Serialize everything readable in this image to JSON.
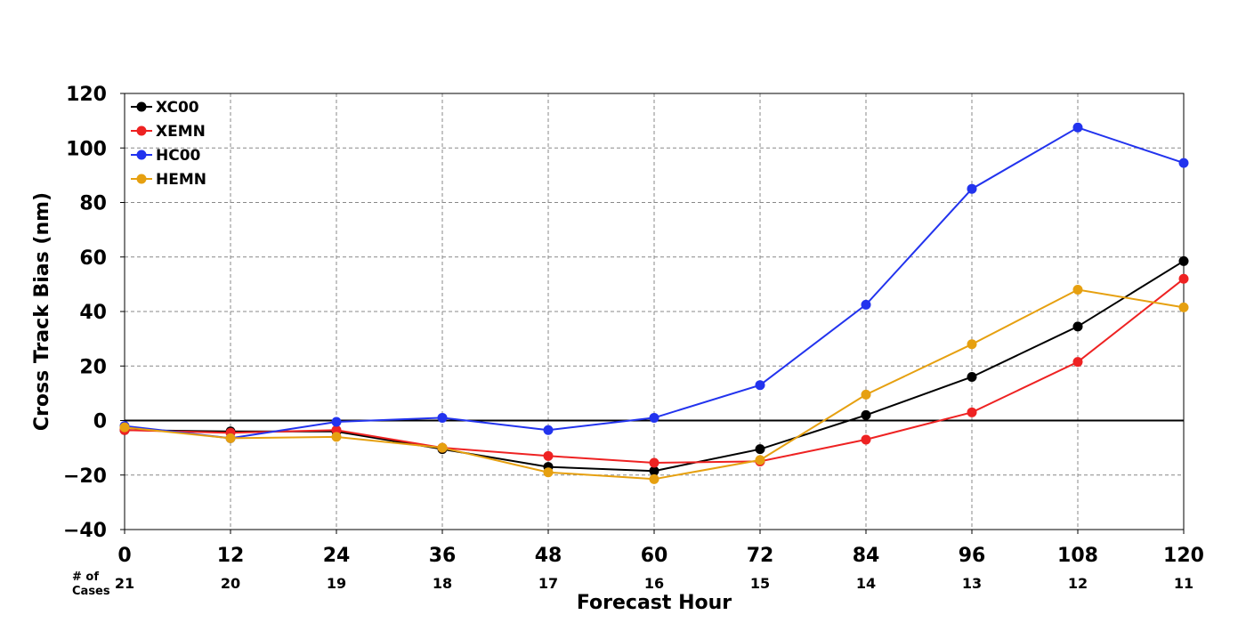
{
  "chart_data": {
    "type": "line",
    "xlabel": "Forecast Hour",
    "ylabel": "Cross Track Bias (nm)",
    "x": [
      0,
      12,
      24,
      36,
      48,
      60,
      72,
      84,
      96,
      108,
      120
    ],
    "xlim": [
      0,
      120
    ],
    "ylim": [
      -40,
      120
    ],
    "xticks": [
      0,
      12,
      24,
      36,
      48,
      60,
      72,
      84,
      96,
      108,
      120
    ],
    "yticks": [
      -40,
      -20,
      0,
      20,
      40,
      60,
      80,
      100,
      120
    ],
    "grid": true,
    "zero_line": true,
    "legend_position": "top-left",
    "cases_caption_line1": "# of",
    "cases_caption_line2": "Cases",
    "cases": [
      21,
      20,
      19,
      18,
      17,
      16,
      15,
      14,
      13,
      12,
      11
    ],
    "series": [
      {
        "name": "XC00",
        "color": "#000000",
        "values": [
          -3.5,
          -4,
          -4,
          -10.5,
          -17,
          -18.5,
          -10.5,
          2,
          16,
          34.5,
          58.5
        ]
      },
      {
        "name": "XEMN",
        "color": "#ee2222",
        "values": [
          -3.5,
          -4.5,
          -3.5,
          -10,
          -13,
          -15.5,
          -15,
          -7,
          3,
          21.5,
          52
        ]
      },
      {
        "name": "HC00",
        "color": "#2233ee",
        "values": [
          -2,
          -6.5,
          -0.5,
          1,
          -3.5,
          1,
          13,
          42.5,
          85,
          107.5,
          94.5
        ]
      },
      {
        "name": "HEMN",
        "color": "#e6a010",
        "values": [
          -2.5,
          -6.5,
          -6,
          -10,
          -19,
          -21.5,
          -14.5,
          9.5,
          28,
          48,
          41.5
        ]
      }
    ]
  }
}
